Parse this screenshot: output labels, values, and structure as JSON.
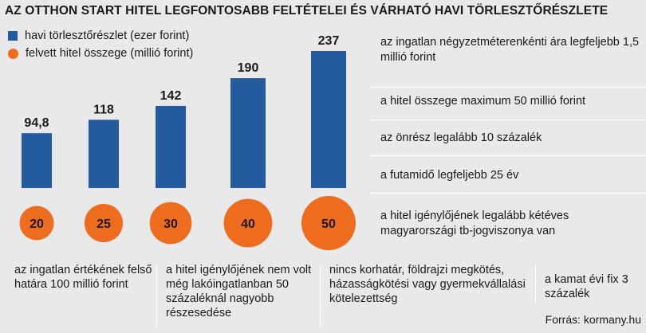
{
  "title": "AZ OTTHON START HITEL LEGFONTOSABB FELTÉTELEI ÉS VÁRHATÓ HAVI TÖRLESZTŐRÉSZLETE",
  "colors": {
    "bar": "#245a9e",
    "circle": "#ee6c1e",
    "background": "#e9e9ea",
    "divider": "#ffffff"
  },
  "chart_data": {
    "type": "bar",
    "categories": [
      "",
      "",
      "",
      "",
      ""
    ],
    "series": [
      {
        "name": "havi törlesztőrészlet (ezer forint)",
        "values": [
          94.8,
          118,
          142,
          190,
          237
        ],
        "labels": [
          "94,8",
          "118",
          "142",
          "190",
          "237"
        ]
      },
      {
        "name": "felvett hitel összege (millió forint)",
        "values": [
          20,
          25,
          30,
          40,
          50
        ],
        "labels": [
          "20",
          "25",
          "30",
          "40",
          "50"
        ]
      }
    ],
    "legend_position": "top-left",
    "grid": false
  },
  "conditions_right": [
    "az ingatlan négyzetméterenkénti ára legfeljebb 1,5 millió forint",
    "a hitel összege maximum 50 millió forint",
    "az önrész legalább 10 százalék",
    "a futamidő legfeljebb 25 év",
    "a hitel igénylőjének legalább kétéves magyarországi tb-jogviszonya van"
  ],
  "conditions_bottom": [
    "az ingatlan értékének felső határa 100 millió forint",
    "a hitel igénylőjének nem volt még lakóingatlanban 50 százaléknál nagyobb részesedése",
    "nincs korhatár, földrajzi megkötés, házasságkötési vagy gyermekvállalási kötelezettség",
    "a kamat évi fix 3 százalék"
  ],
  "source": "Forrás: kormany.hu"
}
